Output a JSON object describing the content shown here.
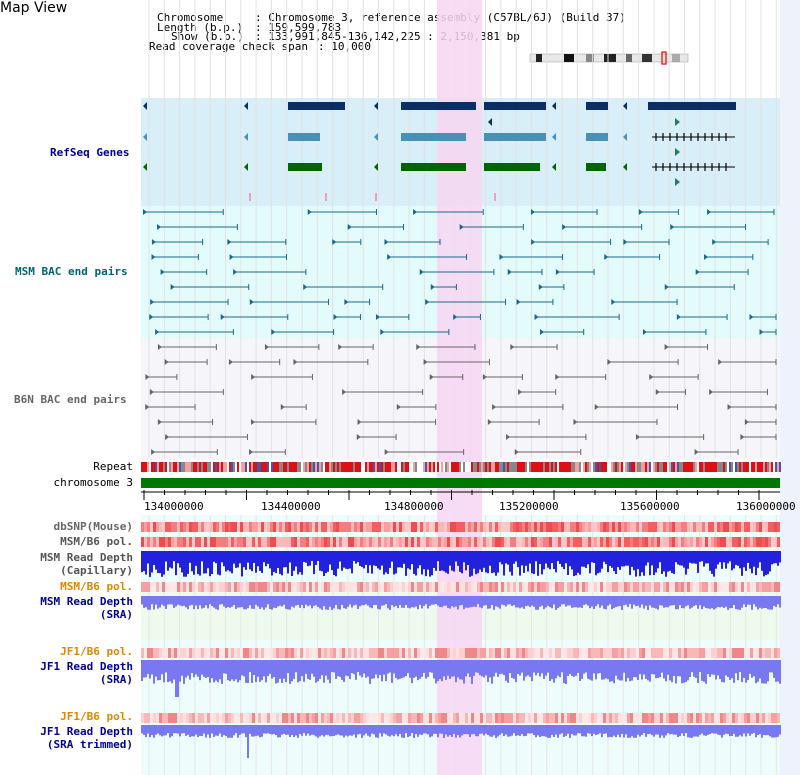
{
  "view_title": "Map View",
  "header": {
    "chromosome_label": "Chromosome",
    "chromosome_value": ": Chromosome 3, reference assembly (C57BL/6J) (Build 37)",
    "length_label": "Length (b.p.)",
    "length_value": ": 159,599,783",
    "show_label": "Show (b.p.)",
    "show_value": ": 133,991,845-136,142,225 : 2,150,381 bp",
    "coverage_label": "Read coverage check span",
    "coverage_value": ": 10,000"
  },
  "tracks": {
    "refseq": "RefSeq Genes",
    "msm_bac": "MSM BAC end pairs",
    "b6n_bac": "B6N BAC end pairs",
    "repeat": "Repeat",
    "chromosome": "chromosome 3",
    "dbsnp": "dbSNP(Mouse)",
    "msm_b6_pol_1": "MSM/B6 pol.",
    "msm_depth_cap_1": "MSM Read Depth",
    "msm_depth_cap_2": "(Capillary)",
    "msm_b6_pol_2": "MSM/B6 pol.",
    "msm_depth_sra_1": "MSM Read Depth",
    "msm_depth_sra_2": "(SRA)",
    "jf1_b6_pol_1": "JF1/B6 pol.",
    "jf1_depth_sra_1": "JF1 Read Depth",
    "jf1_depth_sra_2": "(SRA)",
    "jf1_b6_pol_2": "JF1/B6 pol.",
    "jf1_depth_trim_1": "JF1 Read Depth",
    "jf1_depth_trim_2": "(SRA trimmed)"
  },
  "axis": {
    "ticks": [
      "134000000",
      "134400000",
      "134800000",
      "135200000",
      "135600000",
      "136000000"
    ]
  },
  "colors": {
    "highlight": "#f7d6f2",
    "refseq_bg": "#d8eef8",
    "msm_bg": "#e4fbfb",
    "b6n_bg": "#f6f6fa",
    "gene_dark": "#0a2f66",
    "gene_mid": "#4a8fb5",
    "gene_green": "#006600",
    "msm_pair": "#1a6a8a",
    "b6n_pair": "#666666",
    "chrom_green": "#007700",
    "depth_blue": "#2222dd",
    "depth_light": "#7878f0",
    "label_blue": "#000099",
    "label_teal": "#006677",
    "label_orange": "#dd8800"
  }
}
